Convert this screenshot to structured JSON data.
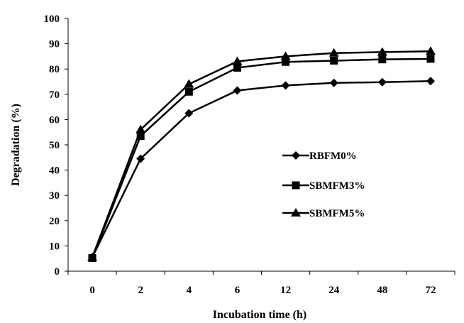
{
  "chart_data": {
    "type": "line",
    "title": "",
    "xlabel": "Incubation time (h)",
    "ylabel": "Degradation (%)",
    "categories": [
      "0",
      "2",
      "4",
      "6",
      "12",
      "24",
      "48",
      "72"
    ],
    "ylim": [
      0,
      100
    ],
    "yticks": [
      "0",
      "10",
      "20",
      "30",
      "40",
      "50",
      "60",
      "70",
      "80",
      "90",
      "100"
    ],
    "grid": false,
    "legend_position": "right-middle",
    "series": [
      {
        "name": "RBFM0%",
        "marker": "diamond",
        "color": "#000000",
        "values": [
          5.5,
          44.5,
          62.5,
          71.5,
          73.5,
          74.5,
          74.8,
          75.2
        ]
      },
      {
        "name": "SBMFM3%",
        "marker": "square",
        "color": "#000000",
        "values": [
          5.2,
          53.5,
          71.0,
          80.5,
          82.8,
          83.3,
          83.8,
          84.0
        ]
      },
      {
        "name": "SBMFM5%",
        "marker": "triangle",
        "color": "#000000",
        "values": [
          5.5,
          56.0,
          74.0,
          83.0,
          85.0,
          86.3,
          86.7,
          87.0
        ]
      }
    ]
  }
}
